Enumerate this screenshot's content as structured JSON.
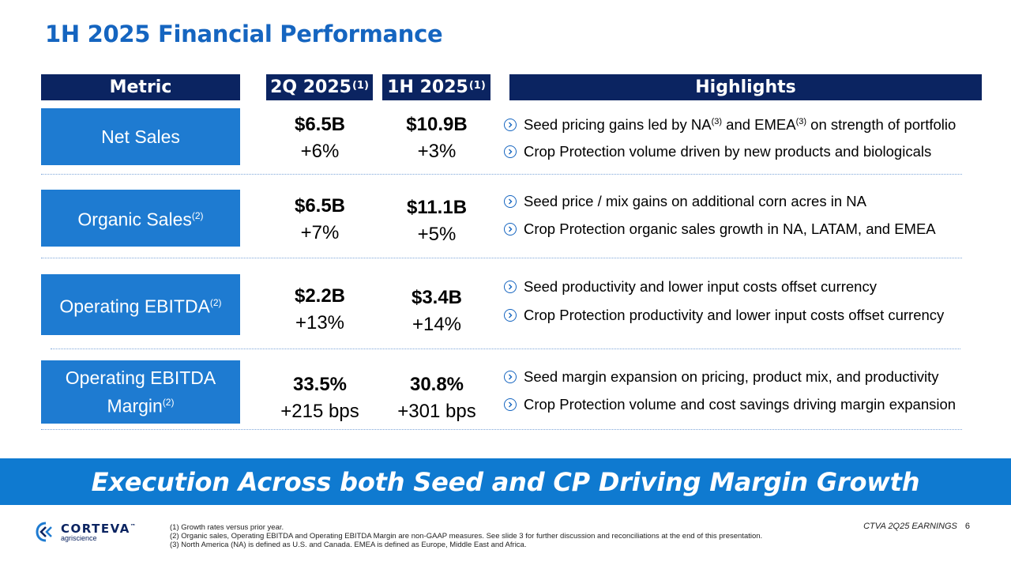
{
  "title": "1H 2025 Financial Performance",
  "headers": {
    "metric": "Metric",
    "q2": "2Q 2025",
    "q2_note": "(1)",
    "h1": "1H 2025",
    "h1_note": "(1)",
    "highlights": "Highlights"
  },
  "rows": [
    {
      "metric": "Net Sales",
      "metric_note": "",
      "q2_value": "$6.5B",
      "q2_change": "+6%",
      "h1_value": "$10.9B",
      "h1_change": "+3%",
      "highlights": [
        {
          "a": "Seed pricing gains led by NA",
          "n1": "(3)",
          "b": " and EMEA",
          "n2": "(3)",
          "c": " on strength of portfolio"
        },
        {
          "a": "Crop Protection volume driven by new products and biologicals",
          "n1": "",
          "b": "",
          "n2": "",
          "c": ""
        }
      ]
    },
    {
      "metric": "Organic Sales",
      "metric_note": "(2)",
      "q2_value": "$6.5B",
      "q2_change": "+7%",
      "h1_value": "$11.1B",
      "h1_change": "+5%",
      "highlights": [
        {
          "a": "Seed price / mix gains on additional corn acres in NA"
        },
        {
          "a": "Crop Protection organic sales growth in NA, LATAM, and EMEA"
        }
      ]
    },
    {
      "metric": "Operating EBITDA",
      "metric_note": "(2)",
      "q2_value": "$2.2B",
      "q2_change": "+13%",
      "h1_value": "$3.4B",
      "h1_change": "+14%",
      "highlights": [
        {
          "a": "Seed productivity and lower input costs offset currency"
        },
        {
          "a": "Crop Protection productivity and lower input costs offset currency"
        }
      ]
    },
    {
      "metric_line1": "Operating EBITDA",
      "metric": "Margin",
      "metric_note": "(2)",
      "q2_value": "33.5%",
      "q2_change": "+215 bps",
      "h1_value": "30.8%",
      "h1_change": "+301 bps",
      "highlights": [
        {
          "a": "Seed margin expansion on pricing, product mix, and productivity"
        },
        {
          "a": "Crop Protection volume and cost savings driving margin expansion"
        }
      ]
    }
  ],
  "banner": "Execution Across both Seed and CP Driving Margin Growth",
  "logo": {
    "brand": "CORTEVA",
    "tm": "™",
    "sub": "agriscience"
  },
  "footnotes": [
    "(1)  Growth rates versus prior year.",
    "(2)  Organic sales, Operating EBITDA and Operating EBITDA Margin are non-GAAP measures. See slide 3 for further discussion and reconciliations at the end of this presentation.",
    "(3)  North America (NA) is defined as U.S. and Canada. EMEA is defined as Europe, Middle East and Africa."
  ],
  "footer": {
    "label": "CTVA 2Q25 EARNINGS",
    "page": "6"
  },
  "colors": {
    "title": "#1565c0",
    "header_bg": "#0b2461",
    "metric_bg": "#1e7bd1",
    "banner_bg": "#0f7ad0"
  }
}
